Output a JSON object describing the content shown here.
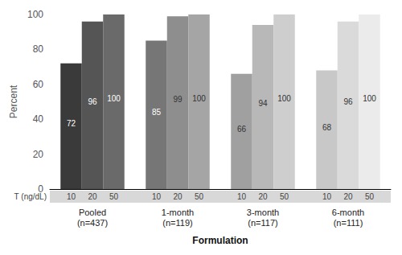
{
  "chart_data": {
    "type": "bar",
    "categories": [
      "Pooled\n(n=437)",
      "1-month\n(n=119)",
      "3-month\n(n=117)",
      "6-month\n(n=111)"
    ],
    "series": [
      {
        "name": "10",
        "values": [
          72,
          85,
          66,
          68
        ],
        "colors": [
          "#3a3a3a",
          "#767676",
          "#a0a0a0",
          "#c8c8c8"
        ]
      },
      {
        "name": "20",
        "values": [
          96,
          99,
          94,
          96
        ],
        "colors": [
          "#555555",
          "#8e8e8e",
          "#b8b8b8",
          "#dadada"
        ]
      },
      {
        "name": "50",
        "values": [
          100,
          100,
          100,
          100
        ],
        "colors": [
          "#6a6a6a",
          "#a5a5a5",
          "#cecece",
          "#ebebeb"
        ]
      }
    ],
    "ylabel": "Percent",
    "xlabel": "Formulation",
    "annotations": [
      "T (ng/dL)"
    ],
    "ylim": [
      0,
      100
    ],
    "yticks": [
      0,
      20,
      40,
      60,
      80,
      100
    ],
    "grid": false,
    "data_labels": true
  }
}
